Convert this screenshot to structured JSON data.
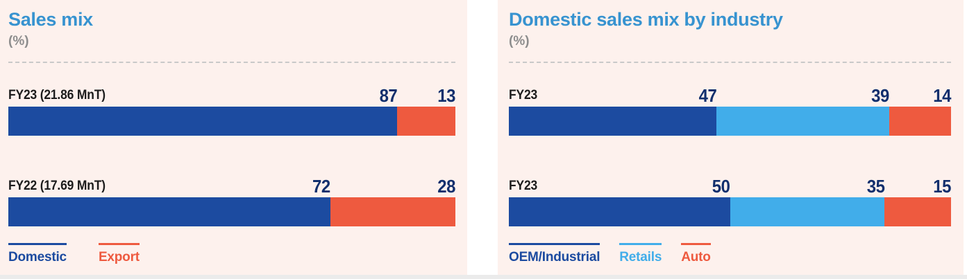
{
  "colors": {
    "panel_background": "#fdf1ed",
    "page_background": "#ffffff",
    "footer_strip": "#ebebeb",
    "title_blue": "#3793d0",
    "subtitle_gray": "#8d8d8d",
    "category_label": "#1c1c1c",
    "value_navy": "#112f6d",
    "series_navy": "#1c4ba0",
    "series_light_blue": "#41adea",
    "series_orange": "#ee5a3f",
    "divider_gray": "#c9c9c9"
  },
  "chart_data": [
    {
      "type": "bar",
      "stacked": true,
      "orientation": "horizontal",
      "title": "Sales mix",
      "subtitle": "(%)",
      "unit": "%",
      "xlim": [
        0,
        100
      ],
      "grid": false,
      "legend_position": "bottom",
      "categories": [
        "FY23 (21.86 MnT)",
        "FY22 (17.69 MnT)"
      ],
      "series": [
        {
          "name": "Domestic",
          "color": "#1c4ba0",
          "values": [
            87,
            72
          ]
        },
        {
          "name": "Export",
          "color": "#ee5a3f",
          "values": [
            13,
            28
          ]
        }
      ]
    },
    {
      "type": "bar",
      "stacked": true,
      "orientation": "horizontal",
      "title": "Domestic sales mix by industry",
      "subtitle": "(%)",
      "unit": "%",
      "xlim": [
        0,
        100
      ],
      "grid": false,
      "legend_position": "bottom",
      "categories": [
        "FY23",
        "FY23"
      ],
      "series": [
        {
          "name": "OEM/Industrial",
          "color": "#1c4ba0",
          "values": [
            47,
            50
          ]
        },
        {
          "name": "Retails",
          "color": "#41adea",
          "values": [
            39,
            35
          ]
        },
        {
          "name": "Auto",
          "color": "#ee5a3f",
          "values": [
            14,
            15
          ]
        }
      ]
    }
  ]
}
